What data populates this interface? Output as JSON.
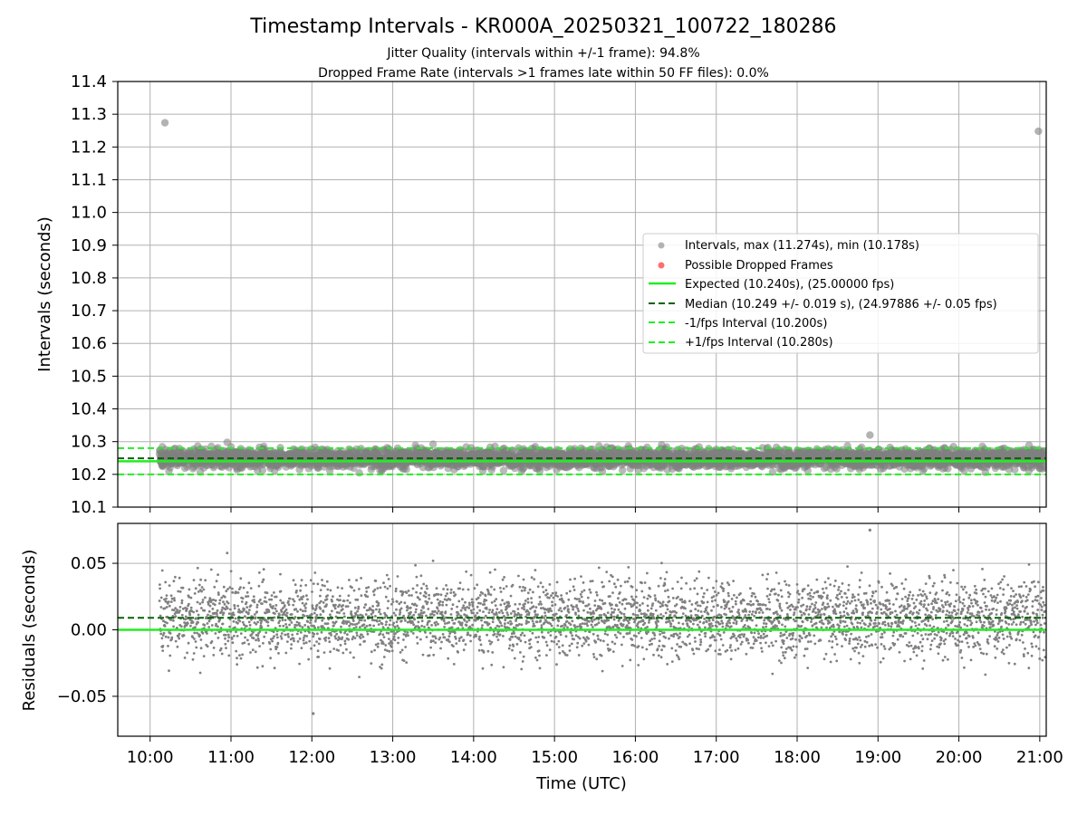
{
  "figure": {
    "title": "Timestamp Intervals - KR000A_20250321_100722_180286",
    "subtitle_1": "Jitter Quality (intervals within +/-1 frame): 94.8%",
    "subtitle_2": "Dropped Frame Rate (intervals >1 frames late within 50 FF files): 0.0%"
  },
  "colors": {
    "scatter_gray": "#808080",
    "dropped_red": "#ff5555",
    "expected_green": "#22ee22",
    "median_darkgreen": "#006400",
    "bound_green": "#22ee22",
    "grid": "#b0b0b0"
  },
  "chart_data": [
    {
      "type": "scatter",
      "ylabel": "Intervals (seconds)",
      "ylim": [
        10.1,
        11.4
      ],
      "yticks": [
        "10.1",
        "10.2",
        "10.3",
        "10.4",
        "10.5",
        "10.6",
        "10.7",
        "10.8",
        "10.9",
        "11.0",
        "11.1",
        "11.2",
        "11.3",
        "11.4"
      ],
      "xlim_hours": [
        9.6,
        21.08
      ],
      "grid": true,
      "legend_position": "center-right",
      "legend": [
        "Intervals, max (11.274s), min (10.178s)",
        "Possible Dropped Frames",
        "Expected (10.240s), (25.00000 fps)",
        "Median (10.249 +/- 0.019 s), (24.97886 +/- 0.05 fps)",
        "-1/fps Interval (10.200s)",
        "+1/fps Interval (10.280s)"
      ],
      "reference_lines": {
        "expected": 10.24,
        "median": 10.249,
        "minus_one_frame": 10.2,
        "plus_one_frame": 10.28
      },
      "intervals_summary": {
        "time_start": "10:07",
        "time_end": "21:04",
        "max": 11.274,
        "min": 10.178,
        "median": 10.249,
        "std": 0.019
      },
      "outliers": [
        {
          "time": "10:11",
          "interval": 11.274
        },
        {
          "time": "20:59",
          "interval": 11.248
        },
        {
          "time": "18:54",
          "interval": 10.32
        }
      ]
    },
    {
      "type": "scatter",
      "xlabel": "Time (UTC)",
      "ylabel": "Residuals (seconds)",
      "ylim": [
        -0.08,
        0.08
      ],
      "yticks": [
        "−0.05",
        "0.00",
        "0.05"
      ],
      "xticks": [
        "10:00",
        "11:00",
        "12:00",
        "13:00",
        "14:00",
        "15:00",
        "16:00",
        "17:00",
        "18:00",
        "19:00",
        "20:00",
        "21:00"
      ],
      "grid": true,
      "reference_lines": {
        "zero": 0.0,
        "median_offset": 0.009
      },
      "residuals_summary": {
        "mean": 0.009,
        "std": 0.019,
        "max": 0.075,
        "min": -0.063
      }
    }
  ]
}
